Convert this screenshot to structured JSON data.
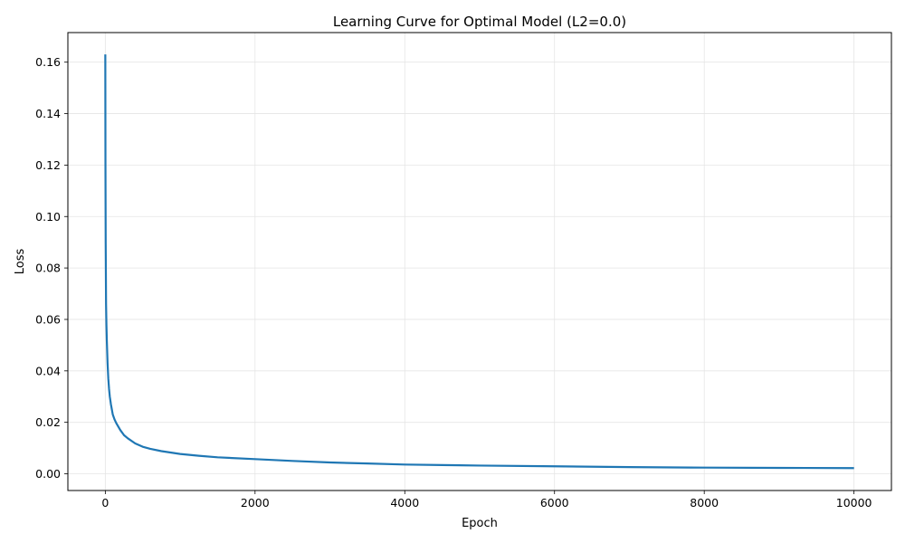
{
  "chart_data": {
    "type": "line",
    "title": "Learning Curve for Optimal Model (L2=0.0)",
    "xlabel": "Epoch",
    "ylabel": "Loss",
    "xlim": [
      -500,
      10500
    ],
    "ylim": [
      -0.0065,
      0.1715
    ],
    "xticks": [
      0,
      2000,
      4000,
      6000,
      8000,
      10000
    ],
    "xtick_labels": [
      "0",
      "2000",
      "4000",
      "6000",
      "8000",
      "10000"
    ],
    "yticks": [
      0.0,
      0.02,
      0.04,
      0.06,
      0.08,
      0.1,
      0.12,
      0.14,
      0.16
    ],
    "ytick_labels": [
      "0.00",
      "0.02",
      "0.04",
      "0.06",
      "0.08",
      "0.10",
      "0.12",
      "0.14",
      "0.16"
    ],
    "grid": true,
    "series": [
      {
        "color": "#1f77b4",
        "x": [
          0,
          2,
          5,
          10,
          15,
          20,
          30,
          40,
          50,
          60,
          75,
          100,
          125,
          150,
          200,
          250,
          300,
          400,
          500,
          600,
          750,
          1000,
          1250,
          1500,
          2000,
          2500,
          3000,
          3500,
          4000,
          4500,
          5000,
          6000,
          7000,
          8000,
          9000,
          10000
        ],
        "y": [
          0.163,
          0.12,
          0.09,
          0.066,
          0.058,
          0.052,
          0.043,
          0.037,
          0.033,
          0.03,
          0.027,
          0.023,
          0.021,
          0.0195,
          0.017,
          0.015,
          0.0138,
          0.0118,
          0.0105,
          0.0097,
          0.0088,
          0.0077,
          0.007,
          0.0064,
          0.0057,
          0.005,
          0.0044,
          0.004,
          0.0036,
          0.0034,
          0.0032,
          0.0029,
          0.0026,
          0.0024,
          0.0023,
          0.0022
        ]
      }
    ]
  }
}
